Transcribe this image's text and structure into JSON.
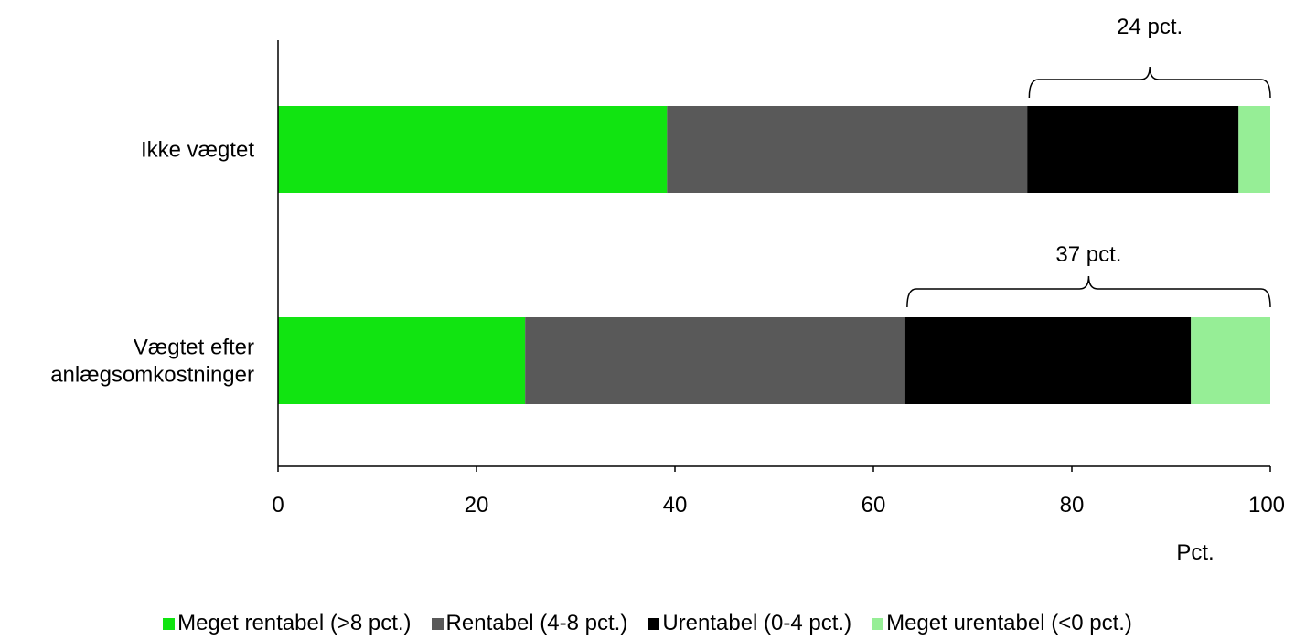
{
  "chart_data": {
    "type": "bar",
    "orientation": "horizontal",
    "stacked": true,
    "categories": [
      "Ikke vægtet",
      "Vægtet efter anlægsomkostninger"
    ],
    "category_lines": [
      [
        "Ikke vægtet"
      ],
      [
        "Vægtet efter",
        "anlægsomkostninger"
      ]
    ],
    "series": [
      {
        "name": "Meget rentabel (>8 pct.)",
        "color": "#11e411",
        "values": [
          39.2,
          24.9
        ]
      },
      {
        "name": "Rentabel (4-8 pct.)",
        "color": "#595959",
        "values": [
          36.3,
          38.3
        ]
      },
      {
        "name": "Urentabel (0-4 pct.)",
        "color": "#000000",
        "values": [
          21.3,
          28.8
        ]
      },
      {
        "name": "Meget urentabel (<0 pct.)",
        "color": "#96ee96",
        "values": [
          3.2,
          8.0
        ]
      }
    ],
    "annotations": [
      {
        "label": "24 pct.",
        "category": 0,
        "from": 75.7,
        "to": 100
      },
      {
        "label": "37 pct.",
        "category": 1,
        "from": 63.4,
        "to": 100
      }
    ],
    "xlim": [
      0,
      100
    ],
    "xticks": [
      0,
      20,
      40,
      60,
      80,
      100
    ],
    "xlabel": "Pct.",
    "ylabel": "",
    "title": "",
    "grid": false,
    "legend_position": "bottom"
  }
}
